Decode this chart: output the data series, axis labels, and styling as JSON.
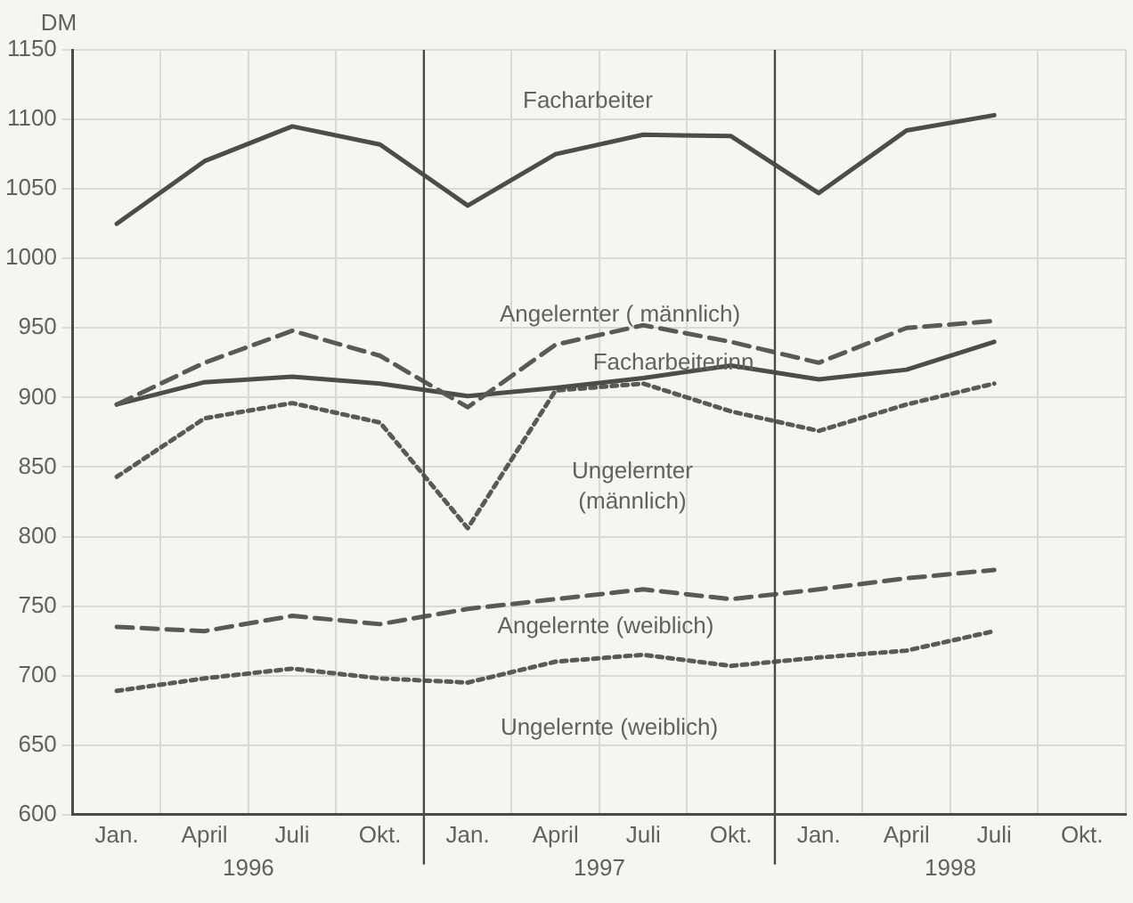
{
  "chart_data": {
    "type": "line",
    "ylabel": "DM",
    "categories": [
      "Jan.",
      "April",
      "Juli",
      "Okt.",
      "Jan.",
      "April",
      "Juli",
      "Okt.",
      "Jan.",
      "April",
      "Juli",
      "Okt."
    ],
    "annotations": [
      "1996",
      "1997",
      "1998"
    ],
    "ylim": [
      600,
      1150
    ],
    "yticks": [
      600,
      650,
      700,
      750,
      800,
      850,
      900,
      950,
      1000,
      1050,
      1100,
      1150
    ],
    "grid": true,
    "legend": false,
    "marker": "none",
    "series": [
      {
        "name": "Facharbeiter",
        "color": "#4d4d48",
        "line_style": "solid",
        "values": [
          1025,
          1070,
          1095,
          1082,
          1038,
          1075,
          1089,
          1088,
          1047,
          1092,
          1103,
          null
        ]
      },
      {
        "name": "Angelernter ( männlich)",
        "color": "#5a5a55",
        "line_style": "dashed",
        "values": [
          895,
          925,
          948,
          930,
          893,
          938,
          952,
          940,
          925,
          950,
          955,
          null
        ]
      },
      {
        "name": "Facharbeiterinn",
        "color": "#4d4d48",
        "line_style": "solid",
        "values": [
          895,
          911,
          915,
          910,
          901,
          907,
          914,
          923,
          913,
          920,
          940,
          null
        ]
      },
      {
        "name": "Ungelernter\n(männlich)",
        "color": "#5a5a55",
        "line_style": "dotted",
        "values": [
          843,
          885,
          896,
          882,
          806,
          905,
          910,
          890,
          876,
          895,
          910,
          null
        ]
      },
      {
        "name": "Angelernte (weiblich)",
        "color": "#5a5a55",
        "line_style": "dashed",
        "values": [
          735,
          732,
          743,
          737,
          748,
          755,
          762,
          755,
          762,
          770,
          776,
          null
        ]
      },
      {
        "name": "Ungelernte (weiblich)",
        "color": "#5a5a55",
        "line_style": "dotted",
        "values": [
          689,
          698,
          705,
          698,
          695,
          710,
          715,
          707,
          713,
          718,
          732,
          null
        ]
      }
    ]
  }
}
